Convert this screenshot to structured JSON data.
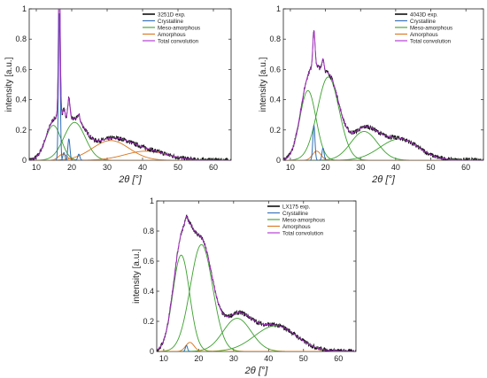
{
  "chart_data": [
    {
      "type": "line",
      "xlabel": "2θ [°]",
      "ylabel": "intensity [a.u.]",
      "xlim": [
        8,
        65
      ],
      "ylim": [
        0,
        1
      ],
      "xticks": [
        10,
        20,
        30,
        40,
        50,
        60
      ],
      "yticks": [
        0,
        0.2,
        0.4,
        0.6,
        0.8,
        1
      ],
      "legend_position": "top-right",
      "legend": [
        "3251D exp.",
        "Crystalline",
        "Meso-amorphous",
        "Amorphous",
        "Total convolution"
      ],
      "series_colors": {
        "exp": "#111111",
        "crystalline": "#2f6db5",
        "meso": "#3aa02c",
        "amorphous": "#d9731a",
        "total": "#b02fd0"
      },
      "crystalline_peaks": [
        {
          "x": 16.5,
          "y": 0.97,
          "w": 0.25
        },
        {
          "x": 19.2,
          "y": 0.14,
          "w": 0.3
        },
        {
          "x": 17.8,
          "y": 0.05,
          "w": 0.3
        },
        {
          "x": 22.0,
          "y": 0.04,
          "w": 0.3
        }
      ],
      "meso_peaks": [
        {
          "x": 14.8,
          "y": 0.23,
          "w": 2.2
        },
        {
          "x": 20.8,
          "y": 0.25,
          "w": 3.0
        }
      ],
      "amorphous_peaks": [
        {
          "x": 31.0,
          "y": 0.13,
          "w": 5.2
        },
        {
          "x": 41.0,
          "y": 0.06,
          "w": 6.0
        },
        {
          "x": 17.5,
          "y": 0.04,
          "w": 1.2
        }
      ]
    },
    {
      "type": "line",
      "xlabel": "2θ [°]",
      "ylabel": "intensity [a.u.]",
      "xlim": [
        8,
        65
      ],
      "ylim": [
        0,
        1
      ],
      "xticks": [
        10,
        20,
        30,
        40,
        50,
        60
      ],
      "yticks": [
        0,
        0.2,
        0.4,
        0.6,
        0.8,
        1
      ],
      "legend_position": "top-right",
      "legend": [
        "4043D exp.",
        "Crystalline",
        "Meso-amorphous",
        "Amorphous",
        "Total convolution"
      ],
      "series_colors": {
        "exp": "#111111",
        "crystalline": "#2f6db5",
        "meso": "#3aa02c",
        "amorphous": "#d9731a",
        "total": "#b02fd0"
      },
      "crystalline_peaks": [
        {
          "x": 16.7,
          "y": 0.23,
          "w": 0.3
        },
        {
          "x": 19.3,
          "y": 0.08,
          "w": 0.3
        }
      ],
      "meso_peaks": [
        {
          "x": 15.0,
          "y": 0.46,
          "w": 2.3
        },
        {
          "x": 20.8,
          "y": 0.55,
          "w": 3.1
        },
        {
          "x": 31.0,
          "y": 0.19,
          "w": 3.8
        },
        {
          "x": 41.0,
          "y": 0.14,
          "w": 5.5
        }
      ],
      "amorphous_peaks": [
        {
          "x": 17.5,
          "y": 0.06,
          "w": 1.2
        }
      ]
    },
    {
      "type": "line",
      "xlabel": "2θ [°]",
      "ylabel": "intensity [a.u.]",
      "xlim": [
        8,
        65
      ],
      "ylim": [
        0,
        1
      ],
      "xticks": [
        10,
        20,
        30,
        40,
        50,
        60
      ],
      "yticks": [
        0,
        0.2,
        0.4,
        0.6,
        0.8,
        1
      ],
      "legend_position": "top-right",
      "legend": [
        "LX175 exp.",
        "Crystalline",
        "Meso-amorphous",
        "Amorphous",
        "Total convolution"
      ],
      "series_colors": {
        "exp": "#111111",
        "crystalline": "#2f6db5",
        "meso": "#3aa02c",
        "amorphous": "#d9731a",
        "total": "#b02fd0"
      },
      "crystalline_peaks": [
        {
          "x": 16.5,
          "y": 0.04,
          "w": 0.3
        }
      ],
      "meso_peaks": [
        {
          "x": 15.0,
          "y": 0.64,
          "w": 2.4
        },
        {
          "x": 20.8,
          "y": 0.71,
          "w": 3.2
        },
        {
          "x": 31.0,
          "y": 0.22,
          "w": 4.0
        },
        {
          "x": 42.0,
          "y": 0.17,
          "w": 6.0
        }
      ],
      "amorphous_peaks": [
        {
          "x": 17.5,
          "y": 0.06,
          "w": 1.2
        }
      ]
    }
  ]
}
